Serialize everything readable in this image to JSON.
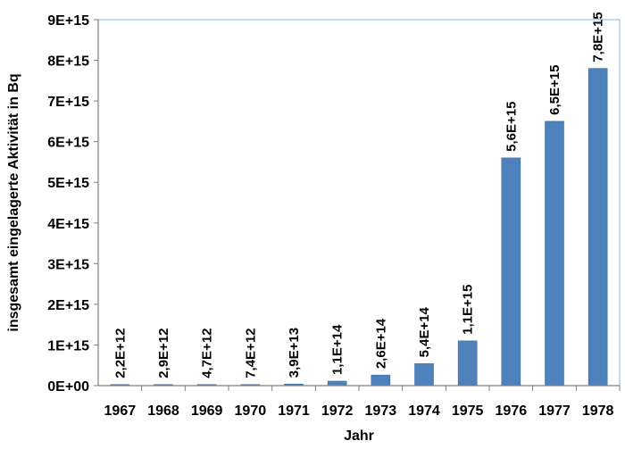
{
  "chart_data": {
    "type": "bar",
    "title": "",
    "xlabel": "Jahr",
    "ylabel": "insgesamt eingelagerte Aktivität in Bq",
    "categories": [
      "1967",
      "1968",
      "1969",
      "1970",
      "1971",
      "1972",
      "1973",
      "1974",
      "1975",
      "1976",
      "1977",
      "1978"
    ],
    "values": [
      2200000000000.0,
      2900000000000.0,
      4700000000000.0,
      7400000000000.0,
      39000000000000.0,
      110000000000000.0,
      260000000000000.0,
      540000000000000.0,
      1100000000000000.0,
      5600000000000000.0,
      6500000000000000.0,
      7800000000000000.0
    ],
    "data_labels": [
      "2,2E+12",
      "2,9E+12",
      "4,7E+12",
      "7,4E+12",
      "3,9E+13",
      "1,1E+14",
      "2,6E+14",
      "5,4E+14",
      "1,1E+15",
      "5,6E+15",
      "6,5E+15",
      "7,8E+15"
    ],
    "ylim": [
      0,
      9000000000000000.0
    ],
    "yticks": [
      0,
      1000000000000000.0,
      2000000000000000.0,
      3000000000000000.0,
      4000000000000000.0,
      5000000000000000.0,
      6000000000000000.0,
      7000000000000000.0,
      8000000000000000.0,
      9000000000000000.0
    ],
    "ytick_labels": [
      "0E+00",
      "1E+15",
      "2E+15",
      "3E+15",
      "4E+15",
      "5E+15",
      "6E+15",
      "7E+15",
      "8E+15",
      "9E+15"
    ],
    "grid": false,
    "legend": "none",
    "colors": {
      "bar": "#4f81bd",
      "bar_edge": "#3a6aa6",
      "plot_border": "#8db3d9",
      "axis": "#7f7f7f"
    }
  }
}
